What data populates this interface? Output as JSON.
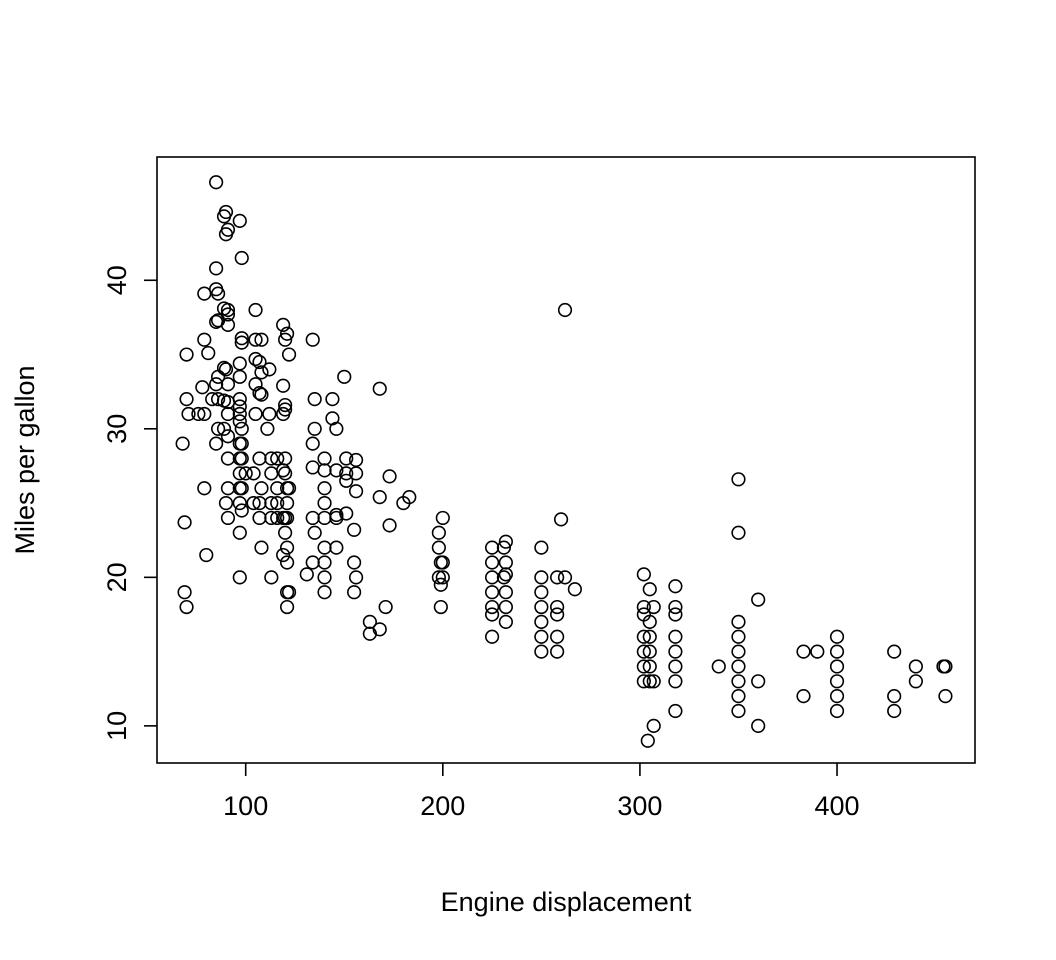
{
  "chart_data": {
    "type": "scatter",
    "title": "",
    "xlabel": "Engine displacement",
    "ylabel": "Miles per gallon",
    "xlim": [
      55,
      470
    ],
    "ylim": [
      7.5,
      48.3
    ],
    "xticks": [
      100,
      200,
      300,
      400
    ],
    "yticks": [
      10,
      20,
      30,
      40
    ],
    "grid": false,
    "legend": "none",
    "marker": "open-circle",
    "color": "#000000",
    "points": [
      [
        85,
        46.6
      ],
      [
        89,
        44.3
      ],
      [
        90,
        44.6
      ],
      [
        97,
        44.0
      ],
      [
        91,
        43.4
      ],
      [
        90,
        43.1
      ],
      [
        98,
        41.5
      ],
      [
        85,
        40.8
      ],
      [
        85,
        39.4
      ],
      [
        86,
        39.1
      ],
      [
        79,
        39.1
      ],
      [
        89,
        38.1
      ],
      [
        91,
        38.0
      ],
      [
        91,
        37.7
      ],
      [
        86,
        37.3
      ],
      [
        91,
        37.0
      ],
      [
        85,
        37.2
      ],
      [
        105,
        38.0
      ],
      [
        262,
        38.0
      ],
      [
        119,
        37.0
      ],
      [
        121,
        36.4
      ],
      [
        79,
        36.0
      ],
      [
        98,
        36.1
      ],
      [
        98,
        35.8
      ],
      [
        105,
        36.0
      ],
      [
        108,
        36.0
      ],
      [
        120,
        36.0
      ],
      [
        134,
        36.0
      ],
      [
        70,
        35.0
      ],
      [
        81,
        35.1
      ],
      [
        122,
        35.0
      ],
      [
        97,
        34.4
      ],
      [
        105,
        34.7
      ],
      [
        107,
        34.5
      ],
      [
        112,
        34.0
      ],
      [
        89,
        34.1
      ],
      [
        90,
        34.0
      ],
      [
        86,
        33.5
      ],
      [
        97,
        33.5
      ],
      [
        108,
        33.8
      ],
      [
        150,
        33.5
      ],
      [
        85,
        33.0
      ],
      [
        91,
        33.0
      ],
      [
        105,
        33.0
      ],
      [
        119,
        32.9
      ],
      [
        78,
        32.8
      ],
      [
        168,
        32.7
      ],
      [
        107,
        32.4
      ],
      [
        108,
        32.3
      ],
      [
        70,
        32.0
      ],
      [
        83,
        32.0
      ],
      [
        86,
        32.0
      ],
      [
        89,
        31.9
      ],
      [
        91,
        31.8
      ],
      [
        97,
        32.0
      ],
      [
        135,
        32.0
      ],
      [
        144,
        32.0
      ],
      [
        120,
        31.6
      ],
      [
        120,
        31.3
      ],
      [
        97,
        31.5
      ],
      [
        71,
        31.0
      ],
      [
        76,
        31.0
      ],
      [
        79,
        31.0
      ],
      [
        91,
        31.0
      ],
      [
        97,
        31.0
      ],
      [
        105,
        31.0
      ],
      [
        112,
        31.0
      ],
      [
        119,
        31.0
      ],
      [
        144,
        30.7
      ],
      [
        86,
        30.0
      ],
      [
        89,
        30.0
      ],
      [
        97,
        30.5
      ],
      [
        98,
        30.0
      ],
      [
        111,
        30.0
      ],
      [
        135,
        30.0
      ],
      [
        146,
        30.0
      ],
      [
        68,
        29.0
      ],
      [
        85,
        29.0
      ],
      [
        97,
        29.0
      ],
      [
        98,
        29.0
      ],
      [
        91,
        29.5
      ],
      [
        134,
        29.0
      ],
      [
        91,
        28.0
      ],
      [
        97,
        28.0
      ],
      [
        98,
        28.0
      ],
      [
        107,
        28.0
      ],
      [
        113,
        28.0
      ],
      [
        116,
        28.0
      ],
      [
        120,
        28.0
      ],
      [
        140,
        28.0
      ],
      [
        151,
        28.0
      ],
      [
        156,
        27.9
      ],
      [
        140,
        27.2
      ],
      [
        146,
        27.2
      ],
      [
        151,
        27.0
      ],
      [
        97,
        27.0
      ],
      [
        100,
        27.0
      ],
      [
        104,
        27.0
      ],
      [
        113,
        27.0
      ],
      [
        119,
        27.2
      ],
      [
        120,
        27.0
      ],
      [
        134,
        27.4
      ],
      [
        156,
        27.0
      ],
      [
        173,
        26.8
      ],
      [
        79,
        26.0
      ],
      [
        91,
        26.0
      ],
      [
        97,
        26.0
      ],
      [
        98,
        26.0
      ],
      [
        108,
        26.0
      ],
      [
        116,
        26.0
      ],
      [
        121,
        26.0
      ],
      [
        122,
        26.0
      ],
      [
        140,
        26.0
      ],
      [
        151,
        26.5
      ],
      [
        156,
        25.8
      ],
      [
        168,
        25.4
      ],
      [
        183,
        25.4
      ],
      [
        350,
        26.6
      ],
      [
        90,
        25.0
      ],
      [
        97,
        25.0
      ],
      [
        104,
        25.0
      ],
      [
        107,
        25.0
      ],
      [
        113,
        25.0
      ],
      [
        116,
        25.0
      ],
      [
        121,
        25.0
      ],
      [
        140,
        25.0
      ],
      [
        146,
        24.2
      ],
      [
        151,
        24.3
      ],
      [
        180,
        25.0
      ],
      [
        91,
        24.0
      ],
      [
        98,
        24.5
      ],
      [
        107,
        24.0
      ],
      [
        113,
        24.0
      ],
      [
        116,
        24.0
      ],
      [
        119,
        24.0
      ],
      [
        120,
        24.0
      ],
      [
        121,
        24.0
      ],
      [
        134,
        24.0
      ],
      [
        140,
        24.0
      ],
      [
        146,
        24.0
      ],
      [
        200,
        24.0
      ],
      [
        260,
        23.9
      ],
      [
        69,
        23.7
      ],
      [
        97,
        23.0
      ],
      [
        120,
        23.0
      ],
      [
        135,
        23.0
      ],
      [
        155,
        23.2
      ],
      [
        173,
        23.5
      ],
      [
        198,
        23.0
      ],
      [
        350,
        23.0
      ],
      [
        108,
        22.0
      ],
      [
        121,
        22.0
      ],
      [
        140,
        22.0
      ],
      [
        146,
        22.0
      ],
      [
        198,
        22.0
      ],
      [
        225,
        22.0
      ],
      [
        231,
        22.0
      ],
      [
        232,
        22.4
      ],
      [
        250,
        22.0
      ],
      [
        80,
        21.5
      ],
      [
        119,
        21.5
      ],
      [
        121,
        21.0
      ],
      [
        134,
        21.0
      ],
      [
        140,
        21.0
      ],
      [
        155,
        21.0
      ],
      [
        199,
        21.0
      ],
      [
        200,
        21.0
      ],
      [
        225,
        21.0
      ],
      [
        232,
        21.0
      ],
      [
        131,
        20.2
      ],
      [
        97,
        20.0
      ],
      [
        113,
        20.0
      ],
      [
        140,
        20.0
      ],
      [
        156,
        20.0
      ],
      [
        198,
        20.0
      ],
      [
        200,
        20.0
      ],
      [
        225,
        20.0
      ],
      [
        231,
        20.0
      ],
      [
        232,
        20.2
      ],
      [
        250,
        20.0
      ],
      [
        258,
        20.0
      ],
      [
        262,
        20.0
      ],
      [
        302,
        20.2
      ],
      [
        140,
        19.0
      ],
      [
        199,
        19.5
      ],
      [
        225,
        19.0
      ],
      [
        232,
        19.0
      ],
      [
        250,
        19.0
      ],
      [
        267,
        19.2
      ],
      [
        305,
        19.2
      ],
      [
        318,
        19.4
      ],
      [
        69,
        19.0
      ],
      [
        121,
        19.0
      ],
      [
        122,
        19.0
      ],
      [
        155,
        19.0
      ],
      [
        70,
        18.0
      ],
      [
        121,
        18.0
      ],
      [
        171,
        18.0
      ],
      [
        199,
        18.0
      ],
      [
        225,
        18.0
      ],
      [
        232,
        18.0
      ],
      [
        250,
        18.0
      ],
      [
        258,
        18.0
      ],
      [
        302,
        18.0
      ],
      [
        307,
        18.0
      ],
      [
        318,
        18.0
      ],
      [
        360,
        18.5
      ],
      [
        225,
        17.5
      ],
      [
        232,
        17.0
      ],
      [
        250,
        17.0
      ],
      [
        258,
        17.5
      ],
      [
        302,
        17.5
      ],
      [
        305,
        17.0
      ],
      [
        318,
        17.5
      ],
      [
        350,
        17.0
      ],
      [
        163,
        17.0
      ],
      [
        163,
        16.2
      ],
      [
        168,
        16.5
      ],
      [
        225,
        16.0
      ],
      [
        250,
        16.0
      ],
      [
        258,
        16.0
      ],
      [
        302,
        16.0
      ],
      [
        305,
        16.0
      ],
      [
        318,
        16.0
      ],
      [
        350,
        16.0
      ],
      [
        400,
        16.0
      ],
      [
        250,
        15.0
      ],
      [
        258,
        15.0
      ],
      [
        302,
        15.0
      ],
      [
        305,
        15.0
      ],
      [
        318,
        15.0
      ],
      [
        350,
        15.0
      ],
      [
        383,
        15.0
      ],
      [
        390,
        15.0
      ],
      [
        400,
        15.0
      ],
      [
        429,
        15.0
      ],
      [
        302,
        14.0
      ],
      [
        305,
        14.0
      ],
      [
        318,
        14.0
      ],
      [
        340,
        14.0
      ],
      [
        350,
        14.0
      ],
      [
        400,
        14.0
      ],
      [
        440,
        14.0
      ],
      [
        454,
        14.0
      ],
      [
        455,
        14.0
      ],
      [
        302,
        13.0
      ],
      [
        305,
        13.0
      ],
      [
        307,
        13.0
      ],
      [
        318,
        13.0
      ],
      [
        350,
        13.0
      ],
      [
        360,
        13.0
      ],
      [
        400,
        13.0
      ],
      [
        440,
        13.0
      ],
      [
        350,
        12.0
      ],
      [
        383,
        12.0
      ],
      [
        400,
        12.0
      ],
      [
        429,
        12.0
      ],
      [
        455,
        12.0
      ],
      [
        318,
        11.0
      ],
      [
        350,
        11.0
      ],
      [
        400,
        11.0
      ],
      [
        429,
        11.0
      ],
      [
        307,
        10.0
      ],
      [
        360,
        10.0
      ],
      [
        304,
        9.0
      ]
    ]
  }
}
